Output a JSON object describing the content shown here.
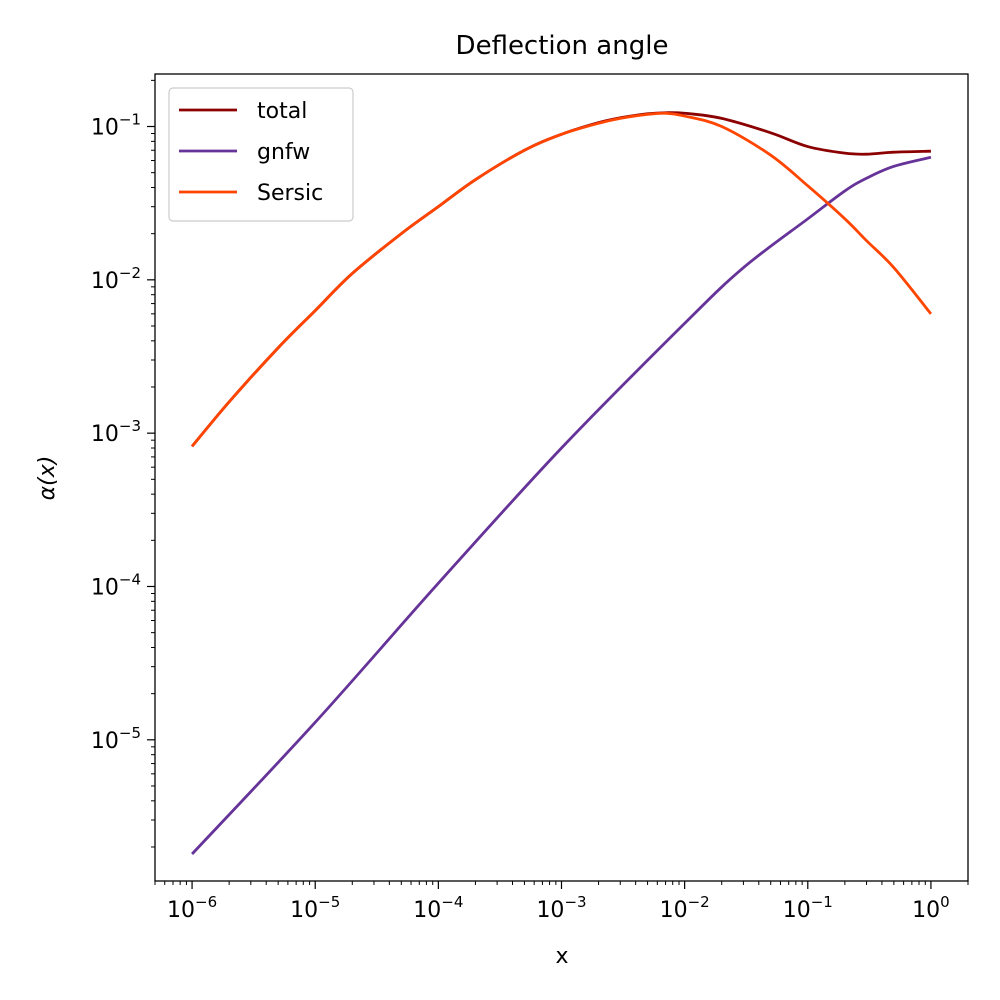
{
  "chart_data": {
    "type": "line",
    "title": "Deflection angle",
    "xlabel": "x",
    "ylabel": "α(x)",
    "xscale": "log",
    "yscale": "log",
    "xlim": [
      5e-07,
      2
    ],
    "ylim": [
      1.2e-06,
      0.22
    ],
    "x_ticks": [
      {
        "value": 1e-06,
        "label": "10",
        "exp": "−6"
      },
      {
        "value": 1e-05,
        "label": "10",
        "exp": "−5"
      },
      {
        "value": 0.0001,
        "label": "10",
        "exp": "−4"
      },
      {
        "value": 0.001,
        "label": "10",
        "exp": "−3"
      },
      {
        "value": 0.01,
        "label": "10",
        "exp": "−2"
      },
      {
        "value": 0.1,
        "label": "10",
        "exp": "−1"
      },
      {
        "value": 1,
        "label": "10",
        "exp": "0"
      }
    ],
    "y_ticks": [
      {
        "value": 1e-05,
        "label": "10",
        "exp": "−5"
      },
      {
        "value": 0.0001,
        "label": "10",
        "exp": "−4"
      },
      {
        "value": 0.001,
        "label": "10",
        "exp": "−3"
      },
      {
        "value": 0.01,
        "label": "10",
        "exp": "−2"
      },
      {
        "value": 0.1,
        "label": "10",
        "exp": "−1"
      }
    ],
    "legend": {
      "position": "top-left"
    },
    "series": [
      {
        "name": "total",
        "color": "#8b0000",
        "x": [
          1e-06,
          2e-06,
          5e-06,
          1e-05,
          2e-05,
          5e-05,
          0.0001,
          0.0002,
          0.0005,
          0.001,
          0.002,
          0.003,
          0.005,
          0.007,
          0.01,
          0.02,
          0.05,
          0.1,
          0.2,
          0.3,
          0.5,
          1
        ],
        "y": [
          0.00082,
          0.0016,
          0.0036,
          0.0063,
          0.011,
          0.02,
          0.03,
          0.045,
          0.07,
          0.089,
          0.106,
          0.114,
          0.121,
          0.123,
          0.122,
          0.113,
          0.091,
          0.074,
          0.067,
          0.066,
          0.068,
          0.069
        ]
      },
      {
        "name": "gnfw",
        "color": "#663399",
        "x": [
          1e-06,
          1e-05,
          0.0001,
          0.001,
          0.01,
          0.03,
          0.1,
          0.2,
          0.3,
          0.5,
          1
        ],
        "y": [
          1.8e-06,
          1.3e-05,
          0.000105,
          0.0008,
          0.0052,
          0.012,
          0.025,
          0.038,
          0.046,
          0.055,
          0.063
        ]
      },
      {
        "name": "Sersic",
        "color": "#ff4500",
        "x": [
          1e-06,
          2e-06,
          5e-06,
          1e-05,
          2e-05,
          5e-05,
          0.0001,
          0.0002,
          0.0005,
          0.001,
          0.002,
          0.003,
          0.005,
          0.007,
          0.01,
          0.02,
          0.05,
          0.1,
          0.2,
          0.3,
          0.5,
          1
        ],
        "y": [
          0.00082,
          0.0016,
          0.0036,
          0.0063,
          0.011,
          0.02,
          0.03,
          0.045,
          0.07,
          0.089,
          0.105,
          0.113,
          0.12,
          0.122,
          0.117,
          0.1,
          0.065,
          0.041,
          0.025,
          0.018,
          0.012,
          0.006
        ]
      }
    ]
  }
}
